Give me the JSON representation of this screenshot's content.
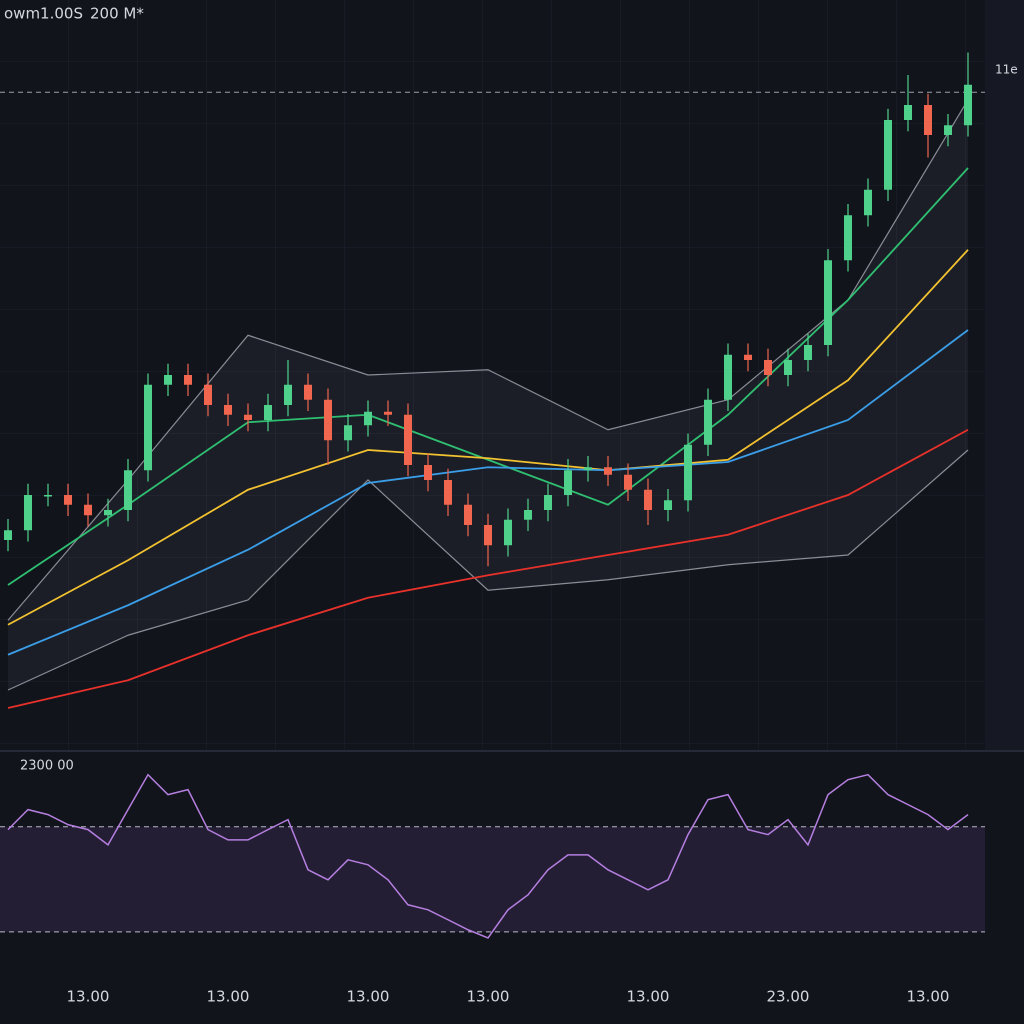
{
  "chart_data": [
    {
      "type": "candlestick",
      "title": "owm1.00S",
      "subtitle": "200 M*",
      "price_label": "11e",
      "categories": [
        null,
        null,
        null,
        null,
        "13.00",
        null,
        null,
        null,
        null,
        null,
        null,
        "13.00",
        null,
        null,
        null,
        null,
        null,
        null,
        "13.00",
        null,
        null,
        null,
        null,
        null,
        "13.00",
        null,
        null,
        null,
        null,
        null,
        null,
        null,
        "13.00",
        null,
        null,
        null,
        null,
        null,
        null,
        "23.00",
        null,
        null,
        null,
        null,
        null,
        null,
        "13.00",
        null,
        null
      ],
      "open": [
        28,
        29.3,
        34,
        34,
        32.7,
        31.3,
        32,
        37.3,
        48.7,
        50,
        48.7,
        46,
        44.7,
        44,
        46,
        48.7,
        46.7,
        41.3,
        43.3,
        45.1,
        44.7,
        38,
        36,
        32.7,
        30,
        27.3,
        30.7,
        32,
        34,
        37.3,
        37.7,
        36.7,
        34.7,
        32,
        33.3,
        40.7,
        46.7,
        52.7,
        52,
        50,
        52,
        54,
        65.3,
        71.3,
        74.7,
        84,
        86,
        82,
        83.3
      ],
      "high": [
        30.8,
        35.5,
        35.5,
        35.5,
        34.2,
        33.5,
        38.8,
        50.2,
        51.5,
        51.5,
        50.2,
        47.5,
        46.2,
        47.5,
        52,
        50.2,
        48.2,
        44.8,
        46.6,
        46.6,
        46.2,
        39.5,
        37.5,
        34.2,
        31.5,
        32.2,
        33.5,
        35.5,
        38.8,
        39.2,
        39.2,
        38.2,
        36.2,
        34.8,
        42.2,
        48.2,
        54.2,
        54.2,
        53.5,
        53.5,
        55.5,
        66.8,
        72.8,
        76.2,
        85.5,
        90,
        87.5,
        84.8,
        93
      ],
      "low": [
        26.5,
        27.8,
        32.5,
        31.2,
        29.8,
        29.8,
        30.5,
        35.8,
        47.2,
        47.2,
        44.5,
        43.2,
        42.5,
        42.5,
        44.5,
        45.2,
        38,
        39.8,
        41.8,
        43.2,
        36.5,
        34.5,
        31.2,
        28.5,
        24.5,
        25.8,
        29.2,
        30.5,
        32.5,
        35.8,
        35.2,
        33.2,
        30,
        30.5,
        31.8,
        39.2,
        45.2,
        50.5,
        48.5,
        48.5,
        50.5,
        52.5,
        63.8,
        69.8,
        73.2,
        82.5,
        79,
        80.5,
        81.8
      ],
      "close": [
        29.3,
        34,
        34,
        32.7,
        31.3,
        32,
        37.3,
        48.7,
        50,
        48.7,
        46,
        44.7,
        44,
        46,
        48.7,
        46.7,
        41.3,
        43.3,
        45.1,
        44.7,
        38,
        36,
        32.7,
        30,
        27.3,
        30.7,
        32,
        34,
        37.3,
        37.7,
        36.7,
        34.7,
        32,
        33.3,
        40.7,
        46.7,
        52.7,
        52,
        50,
        52,
        54,
        65.3,
        71.3,
        74.7,
        84,
        86,
        82,
        83.3,
        88.7
      ],
      "up_color": "#4fd18b",
      "down_color": "#f0664f",
      "ylim": [
        0,
        100
      ],
      "price_line": 87.7,
      "series": [
        {
          "color": "#2fbf71",
          "x": [
            0,
            6,
            12,
            18,
            24,
            30,
            36,
            42,
            48
          ],
          "values": [
            22,
            32.7,
            43.7,
            44.7,
            38.7,
            32.7,
            44.7,
            60,
            77.6
          ]
        },
        {
          "color": "#f2c230",
          "x": [
            0,
            6,
            12,
            18,
            24,
            30,
            36,
            42,
            48
          ],
          "values": [
            16.7,
            25.3,
            34.7,
            40,
            38.9,
            37.3,
            38.7,
            49.3,
            66.7
          ]
        },
        {
          "color": "#3a9ee8",
          "x": [
            0,
            6,
            12,
            18,
            24,
            30,
            36,
            42,
            48
          ],
          "values": [
            12.7,
            19.3,
            26.7,
            35.6,
            37.7,
            37.3,
            38.4,
            44,
            56
          ]
        },
        {
          "color": "#e8312a",
          "x": [
            0,
            6,
            12,
            18,
            24,
            30,
            36,
            42,
            48
          ],
          "values": [
            5.6,
            9.3,
            15.3,
            20.3,
            23.3,
            26,
            28.7,
            34,
            42.7
          ]
        }
      ],
      "bands": {
        "color": "#8a8d96",
        "x": [
          0,
          6,
          12,
          18,
          24,
          30,
          36,
          42,
          48
        ],
        "upper": [
          17.3,
          36,
          55.3,
          50,
          50.7,
          42.7,
          46.7,
          60,
          86.7
        ],
        "lower": [
          8,
          15.3,
          20,
          36,
          21.3,
          22.7,
          24.7,
          26,
          40
        ]
      }
    },
    {
      "type": "line",
      "title": "2300 00",
      "color": "#b57fe0",
      "ylim": [
        25,
        95
      ],
      "levels": [
        70,
        30
      ],
      "values": [
        68.9,
        76.5,
        74.6,
        70.8,
        68.9,
        63.1,
        76.5,
        89.8,
        82.2,
        84.1,
        68.9,
        65,
        65,
        68.9,
        72.7,
        53.6,
        49.8,
        57.4,
        55.5,
        49.8,
        40.3,
        38.4,
        34.6,
        30.8,
        27.7,
        38.4,
        44.1,
        53.6,
        59.3,
        59.3,
        53.6,
        49.8,
        46,
        49.8,
        67,
        80.3,
        82.2,
        68.9,
        67,
        72.7,
        63.1,
        82.2,
        87.9,
        89.8,
        82.2,
        78.4,
        74.6,
        68.9,
        74.6
      ]
    }
  ]
}
